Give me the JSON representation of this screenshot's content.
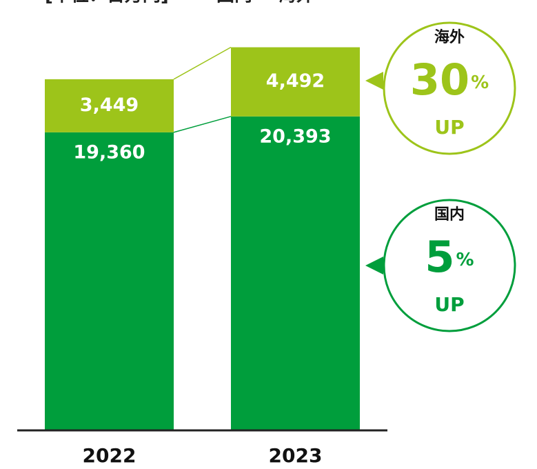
{
  "chart_data": {
    "type": "stacked_bar",
    "unit_note": "[単位：百万円]",
    "categories": [
      "2022",
      "2023"
    ],
    "series": [
      {
        "name": "国内",
        "color": "#009e3c",
        "values": [
          19360,
          20393
        ],
        "value_labels": [
          "19,360",
          "20,393"
        ]
      },
      {
        "name": "海外",
        "color": "#9dc41a",
        "values": [
          3449,
          4492
        ],
        "value_labels": [
          "3,449",
          "4,492"
        ]
      }
    ],
    "ylim": [
      0,
      28000
    ],
    "annotations": [
      {
        "series": 1,
        "label": "海外",
        "value": 30,
        "unit": "%",
        "note": "UP"
      },
      {
        "series": 0,
        "label": "国内",
        "value": 5,
        "unit": "%",
        "note": "UP"
      }
    ]
  }
}
